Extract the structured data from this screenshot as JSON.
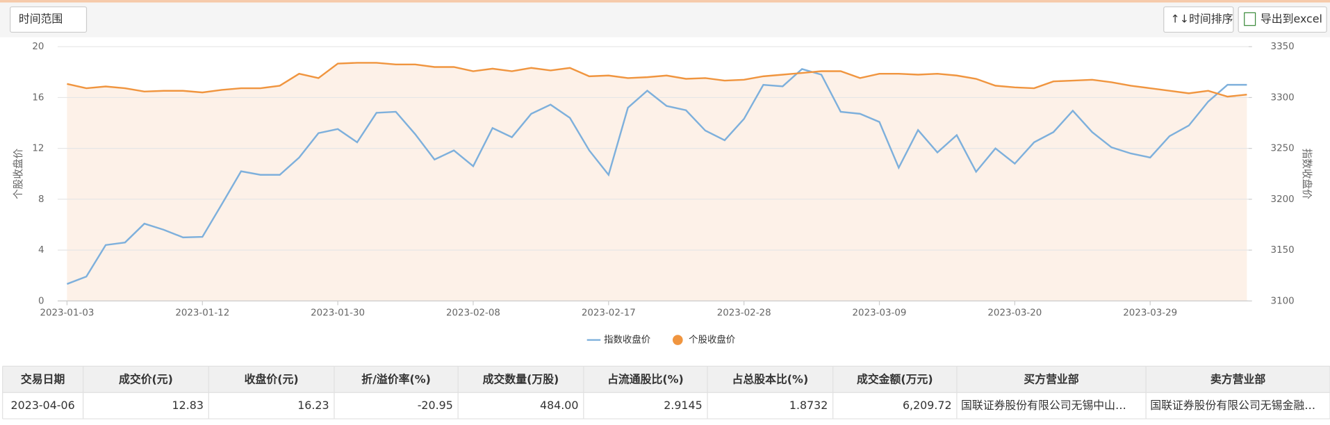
{
  "toolbar": {
    "range": "时间范围",
    "sort": "↑↓时间排序",
    "export": "导出到excel"
  },
  "chart_data": {
    "type": "line",
    "ylabel": "个股收盘价",
    "y2label": "指数收盘价",
    "categories": [
      "2023-01-03",
      null,
      null,
      null,
      null,
      null,
      null,
      "2023-01-12",
      null,
      null,
      null,
      null,
      null,
      null,
      "2023-01-30",
      null,
      null,
      null,
      null,
      null,
      null,
      "2023-02-08",
      null,
      null,
      null,
      null,
      null,
      null,
      "2023-02-17",
      null,
      null,
      null,
      null,
      null,
      null,
      "2023-02-28",
      null,
      null,
      null,
      null,
      null,
      null,
      "2023-03-09",
      null,
      null,
      null,
      null,
      null,
      null,
      "2023-03-20",
      null,
      null,
      null,
      null,
      null,
      null,
      "2023-03-29",
      null,
      null,
      null,
      null,
      null
    ],
    "ylim": [
      0,
      20
    ],
    "yticks": [
      0,
      4,
      8,
      12,
      16,
      20
    ],
    "y2lim": [
      3100,
      3350
    ],
    "y2ticks": [
      3100,
      3150,
      3200,
      3250,
      3300,
      3350
    ],
    "grid": true,
    "legend": "bottom",
    "series": [
      {
        "name": "指数收盘价",
        "color": "#7eb0dc",
        "axis": "y2",
        "values": [
          3116.7,
          3124,
          3155,
          3157.5,
          3176,
          3170,
          3162.5,
          3163,
          3195,
          3227.5,
          3224,
          3224,
          3241,
          3265,
          3269,
          3256,
          3285,
          3286,
          3264,
          3239,
          3248,
          3232.5,
          3270,
          3261,
          3284,
          3293,
          3280,
          3248,
          3224,
          3290,
          3306.7,
          3291.7,
          3287.5,
          3267.5,
          3258,
          3279,
          3312.5,
          3311,
          3328,
          3322.5,
          3286,
          3284,
          3276,
          3231,
          3268,
          3246,
          3263,
          3227,
          3250,
          3235,
          3256,
          3266,
          3287,
          3266,
          3251,
          3245,
          3241,
          3262,
          3272.5,
          3296,
          3312.5,
          3312.5
        ]
      },
      {
        "name": "个股收盘价",
        "color": "#f0953f",
        "area_color": "#fdeee2",
        "values": [
          17.07,
          16.73,
          16.87,
          16.73,
          16.47,
          16.53,
          16.53,
          16.4,
          16.6,
          16.73,
          16.73,
          16.93,
          17.87,
          17.53,
          18.67,
          18.73,
          18.73,
          18.6,
          18.6,
          18.4,
          18.4,
          18.07,
          18.27,
          18.07,
          18.33,
          18.13,
          18.33,
          17.67,
          17.73,
          17.53,
          17.6,
          17.73,
          17.47,
          17.53,
          17.33,
          17.4,
          17.67,
          17.8,
          17.93,
          18.07,
          18.07,
          17.53,
          17.87,
          17.87,
          17.8,
          17.87,
          17.73,
          17.47,
          16.93,
          16.8,
          16.73,
          17.27,
          17.33,
          17.4,
          17.2,
          16.93,
          16.73,
          16.53,
          16.33,
          16.53,
          16.07,
          16.23
        ]
      }
    ]
  },
  "table": {
    "headers": [
      "交易日期",
      "成交价(元)",
      "收盘价(元)",
      "折/溢价率(%)",
      "成交数量(万股)",
      "占流通股比(%)",
      "占总股本比(%)",
      "成交金额(万元)",
      "买方营业部",
      "卖方营业部"
    ],
    "rows": [
      [
        "2023-04-06",
        "12.83",
        "16.23",
        "-20.95",
        "484.00",
        "2.9145",
        "1.8732",
        "6,209.72",
        "国联证券股份有限公司无锡中山…",
        "国联证券股份有限公司无锡金融…"
      ]
    ]
  }
}
